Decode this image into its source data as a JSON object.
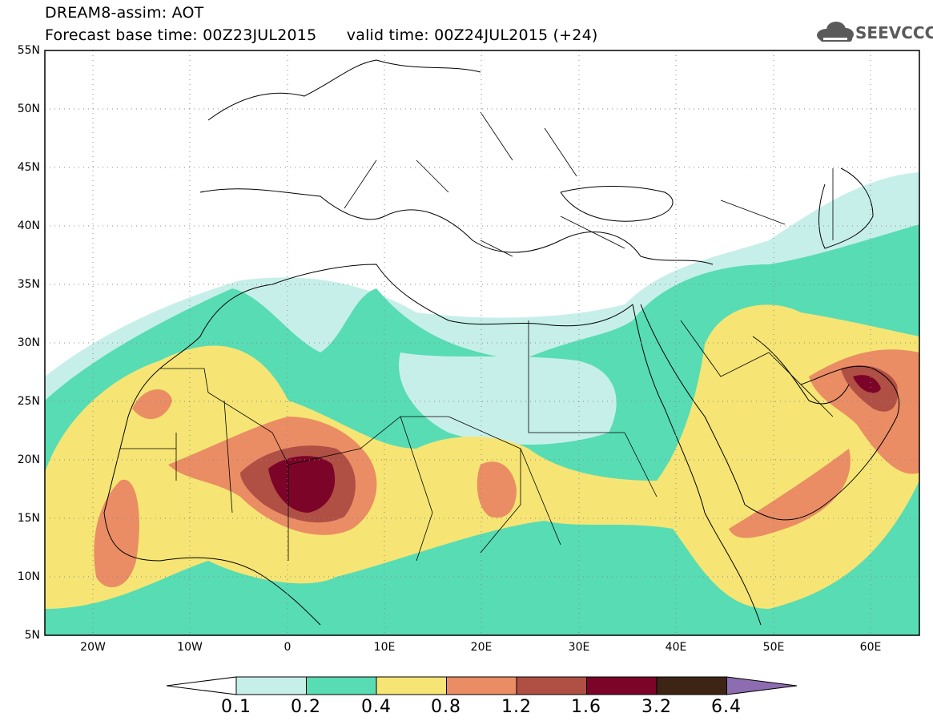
{
  "header": {
    "line1": "DREAM8-assim: AOT",
    "line2": "Forecast base time: 00Z23JUL2015      valid time: 00Z24JUL2015 (+24)"
  },
  "logo": {
    "text": "SEEVCCC",
    "icon": "cloud-icon"
  },
  "map": {
    "lon_range": [
      -25,
      65
    ],
    "lat_range": [
      5,
      55
    ],
    "gridlines": "dotted",
    "y_ticks": [
      "5N",
      "10N",
      "15N",
      "20N",
      "25N",
      "30N",
      "35N",
      "40N",
      "45N",
      "50N",
      "55N"
    ],
    "x_ticks": [
      "20W",
      "10W",
      "0",
      "10E",
      "20E",
      "30E",
      "40E",
      "50E",
      "60E"
    ]
  },
  "colorbar": {
    "labels": [
      "0.1",
      "0.2",
      "0.4",
      "0.8",
      "1.2",
      "1.6",
      "3.2",
      "6.4"
    ],
    "colors": [
      "#ffffff",
      "#c7efea",
      "#58dcb4",
      "#f6e574",
      "#ea8d64",
      "#b04f44",
      "#7c0428",
      "#3d2414",
      "#8e6cb0"
    ]
  }
}
